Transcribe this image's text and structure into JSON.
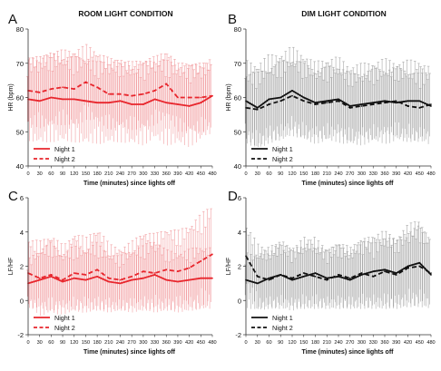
{
  "chart_data": [
    {
      "panel": "A",
      "title": "ROOM LIGHT CONDITION",
      "type": "line",
      "ylabel": "HR (bpm)",
      "xlabel": "Time (minutes) since lights off",
      "ylim": [
        40,
        80
      ],
      "yticks": [
        40,
        50,
        60,
        70,
        80
      ],
      "xlim": [
        0,
        480
      ],
      "xticks": [
        0,
        30,
        60,
        90,
        120,
        150,
        180,
        210,
        240,
        270,
        300,
        330,
        360,
        390,
        420,
        450,
        480
      ],
      "error_bars": true,
      "color": "#e8262d",
      "legend_position": "bottom-left",
      "series": [
        {
          "name": "Night 1",
          "dash": "solid",
          "x": [
            0,
            30,
            60,
            90,
            120,
            150,
            180,
            210,
            240,
            270,
            300,
            330,
            360,
            390,
            420,
            450,
            480
          ],
          "y": [
            59.5,
            59,
            60,
            59.5,
            59.5,
            59,
            58.5,
            58.5,
            59,
            58,
            58,
            59.5,
            58.5,
            58,
            57.5,
            58.5,
            60.5
          ],
          "err": [
            12,
            13,
            13,
            13,
            12.5,
            13,
            12,
            12.5,
            12,
            12,
            12,
            12,
            12.5,
            12,
            12,
            11.5,
            11
          ]
        },
        {
          "name": "Night 2",
          "dash": "dashed",
          "x": [
            0,
            30,
            60,
            90,
            120,
            150,
            180,
            210,
            240,
            270,
            300,
            330,
            360,
            390,
            420,
            450,
            480
          ],
          "y": [
            62,
            61.5,
            62.5,
            63,
            62.5,
            64.5,
            63,
            61,
            61,
            60.5,
            61,
            62,
            64,
            60,
            60,
            60,
            60.5
          ],
          "err": [
            10,
            10.5,
            11,
            11,
            11.5,
            11,
            10.5,
            10.5,
            10,
            10,
            10.5,
            10,
            10,
            10,
            10.5,
            10,
            10
          ]
        }
      ]
    },
    {
      "panel": "B",
      "title": "DIM LIGHT CONDITION",
      "type": "line",
      "ylabel": "HR (bpm)",
      "xlabel": "Time (minutes) since lights off",
      "ylim": [
        40,
        80
      ],
      "yticks": [
        40,
        50,
        60,
        70,
        80
      ],
      "xlim": [
        0,
        480
      ],
      "xticks": [
        0,
        30,
        60,
        90,
        120,
        150,
        180,
        210,
        240,
        270,
        300,
        330,
        360,
        390,
        420,
        450,
        480
      ],
      "error_bars": true,
      "color": "#111111",
      "legend_position": "bottom-left",
      "series": [
        {
          "name": "Night 1",
          "dash": "solid",
          "x": [
            0,
            30,
            60,
            90,
            120,
            150,
            180,
            210,
            240,
            270,
            300,
            330,
            360,
            390,
            420,
            450,
            480
          ],
          "y": [
            59,
            57,
            59.5,
            60,
            62,
            60,
            58.5,
            59,
            59.5,
            57.5,
            58,
            58.5,
            59,
            58.5,
            59,
            59,
            57.5
          ],
          "err": [
            12,
            13,
            13,
            13,
            13,
            13,
            12,
            12.5,
            12.5,
            12,
            12,
            12,
            12.5,
            12,
            12,
            12,
            11.5
          ]
        },
        {
          "name": "Night 2",
          "dash": "dashed",
          "x": [
            0,
            30,
            60,
            90,
            120,
            150,
            180,
            210,
            240,
            270,
            300,
            330,
            360,
            390,
            420,
            450,
            480
          ],
          "y": [
            57,
            56.5,
            58,
            59,
            60.5,
            59,
            58,
            58.5,
            59,
            57,
            57.5,
            58,
            58.5,
            59,
            57.5,
            57,
            58
          ],
          "err": [
            10,
            11,
            11,
            11.5,
            11,
            11,
            10.5,
            10.5,
            10.5,
            10,
            10,
            10.5,
            10,
            10,
            10.5,
            10,
            10
          ]
        }
      ]
    },
    {
      "panel": "C",
      "title": "",
      "type": "line",
      "ylabel": "LF/HF",
      "xlabel": "Time (minutes) since lights off",
      "ylim": [
        -2,
        6
      ],
      "yticks": [
        -2,
        0,
        2,
        4,
        6
      ],
      "xlim": [
        0,
        480
      ],
      "xticks": [
        0,
        30,
        60,
        90,
        120,
        150,
        180,
        210,
        240,
        270,
        300,
        330,
        360,
        390,
        420,
        450,
        480
      ],
      "error_bars": true,
      "color": "#e8262d",
      "legend_position": "bottom-left",
      "series": [
        {
          "name": "Night 1",
          "dash": "solid",
          "x": [
            0,
            30,
            60,
            90,
            120,
            150,
            180,
            210,
            240,
            270,
            300,
            330,
            360,
            390,
            420,
            450,
            480
          ],
          "y": [
            1.0,
            1.2,
            1.4,
            1.1,
            1.3,
            1.2,
            1.4,
            1.1,
            1.0,
            1.2,
            1.3,
            1.5,
            1.2,
            1.1,
            1.2,
            1.3,
            1.3
          ],
          "err": [
            1.4,
            1.8,
            2.0,
            1.7,
            1.9,
            1.8,
            2.0,
            1.7,
            1.6,
            1.8,
            1.9,
            2.1,
            1.8,
            1.7,
            1.8,
            1.9,
            1.8
          ]
        },
        {
          "name": "Night 2",
          "dash": "dashed",
          "x": [
            0,
            30,
            60,
            90,
            120,
            150,
            180,
            210,
            240,
            270,
            300,
            330,
            360,
            390,
            420,
            450,
            480
          ],
          "y": [
            1.6,
            1.3,
            1.5,
            1.2,
            1.6,
            1.5,
            1.8,
            1.3,
            1.2,
            1.4,
            1.7,
            1.6,
            1.8,
            1.7,
            1.9,
            2.3,
            2.7
          ],
          "err": [
            2.0,
            2.2,
            2.4,
            2.0,
            2.4,
            2.2,
            2.5,
            2.0,
            1.9,
            2.1,
            2.4,
            2.3,
            2.5,
            2.4,
            2.6,
            2.8,
            3.0
          ]
        }
      ]
    },
    {
      "panel": "D",
      "title": "",
      "type": "line",
      "ylabel": "LF/HF",
      "xlabel": "Time (minutes) since lights off",
      "ylim": [
        -2,
        6
      ],
      "yticks": [
        -2,
        0,
        2,
        4,
        6
      ],
      "xlim": [
        0,
        480
      ],
      "xticks": [
        0,
        30,
        60,
        90,
        120,
        150,
        180,
        210,
        240,
        270,
        300,
        330,
        360,
        390,
        420,
        450,
        480
      ],
      "error_bars": true,
      "color": "#111111",
      "legend_position": "bottom-left",
      "series": [
        {
          "name": "Night 1",
          "dash": "solid",
          "x": [
            0,
            30,
            60,
            90,
            120,
            150,
            180,
            210,
            240,
            270,
            300,
            330,
            360,
            390,
            420,
            450,
            480
          ],
          "y": [
            1.2,
            1.0,
            1.3,
            1.5,
            1.2,
            1.4,
            1.6,
            1.3,
            1.4,
            1.2,
            1.5,
            1.7,
            1.8,
            1.6,
            2.0,
            2.2,
            1.5
          ],
          "err": [
            1.6,
            1.7,
            1.8,
            2.0,
            1.8,
            1.9,
            2.1,
            1.8,
            1.9,
            1.7,
            2.0,
            2.2,
            2.3,
            2.1,
            2.4,
            2.6,
            2.0
          ]
        },
        {
          "name": "Night 2",
          "dash": "dashed",
          "x": [
            0,
            30,
            60,
            90,
            120,
            150,
            180,
            210,
            240,
            270,
            300,
            330,
            360,
            390,
            420,
            450,
            480
          ],
          "y": [
            2.6,
            1.4,
            1.2,
            1.5,
            1.3,
            1.6,
            1.4,
            1.2,
            1.5,
            1.3,
            1.6,
            1.4,
            1.7,
            1.5,
            1.9,
            2.0,
            1.6
          ],
          "err": [
            1.8,
            1.9,
            1.7,
            2.0,
            1.8,
            2.1,
            1.9,
            1.7,
            2.0,
            1.8,
            2.1,
            1.9,
            2.2,
            2.0,
            2.3,
            2.4,
            2.0
          ]
        }
      ]
    }
  ]
}
